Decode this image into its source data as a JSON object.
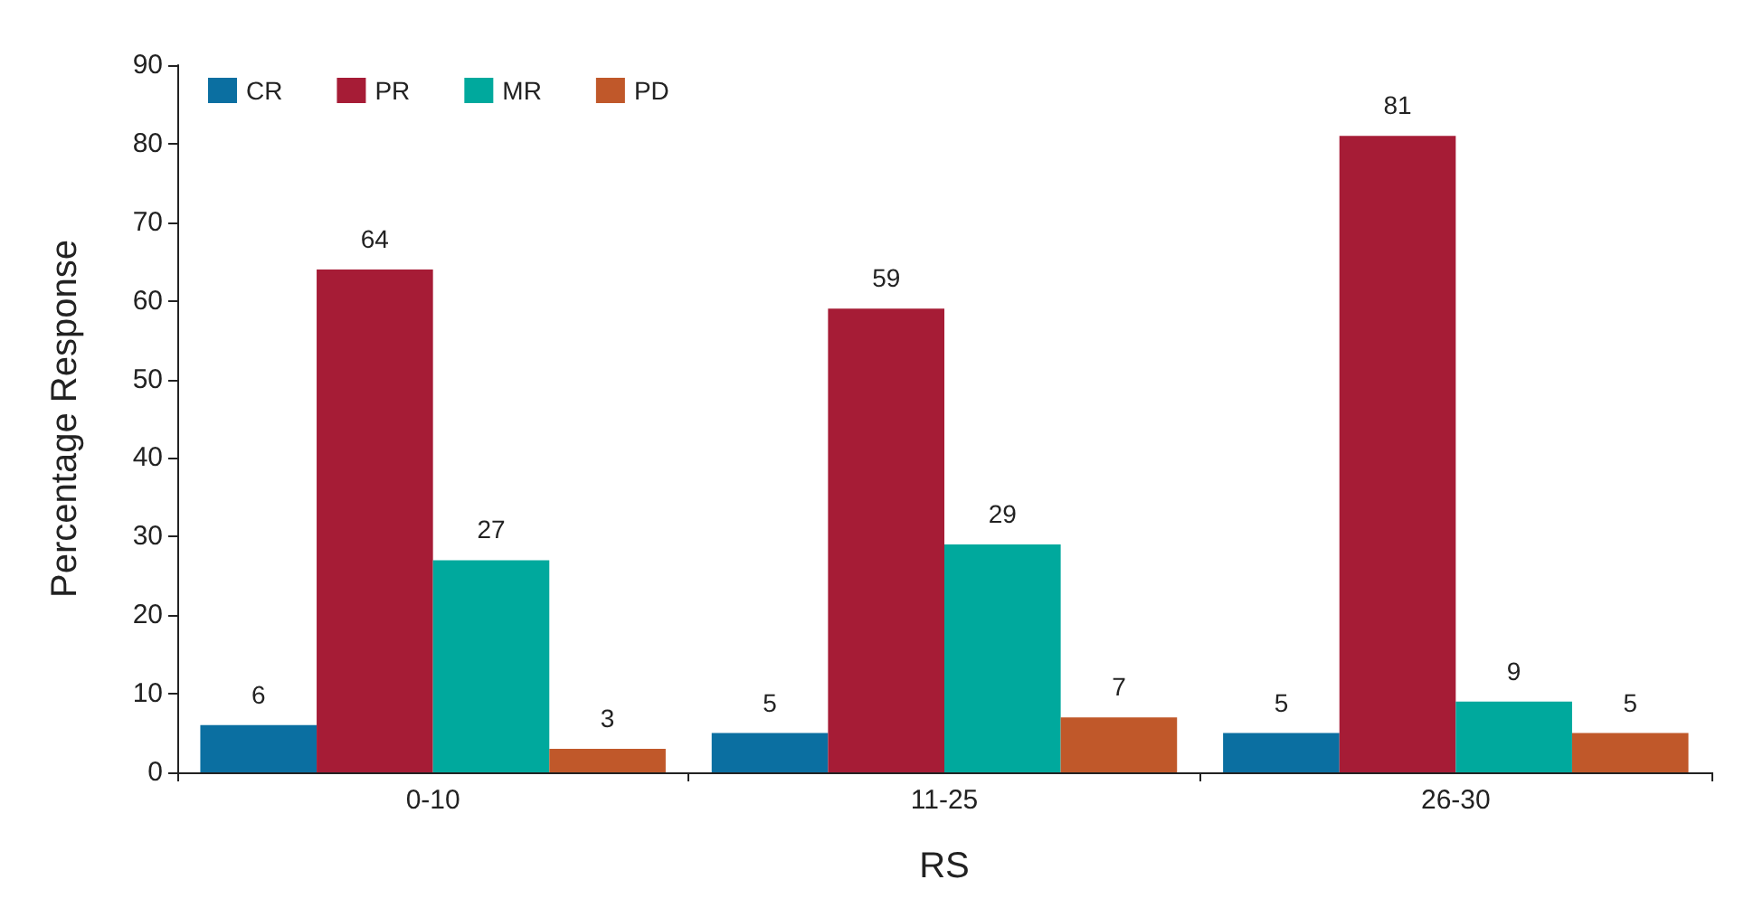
{
  "chart_data": {
    "type": "bar",
    "xlabel": "RS",
    "ylabel": "Percentage Response",
    "categories": [
      "0-10",
      "11-25",
      "26-30"
    ],
    "series": [
      {
        "name": "CR",
        "color": "#0b6fa1",
        "values": [
          6,
          5,
          5
        ]
      },
      {
        "name": "PR",
        "color": "#a61c36",
        "values": [
          64,
          59,
          81
        ]
      },
      {
        "name": "MR",
        "color": "#00a99d",
        "values": [
          27,
          29,
          9
        ]
      },
      {
        "name": "PD",
        "color": "#c0582a",
        "values": [
          3,
          7,
          5
        ]
      }
    ],
    "ylim": [
      0,
      90
    ],
    "yticks": [
      0,
      10,
      20,
      30,
      40,
      50,
      60,
      70,
      80,
      90
    ],
    "grid": false,
    "legend": "top left",
    "data_labels": true
  }
}
